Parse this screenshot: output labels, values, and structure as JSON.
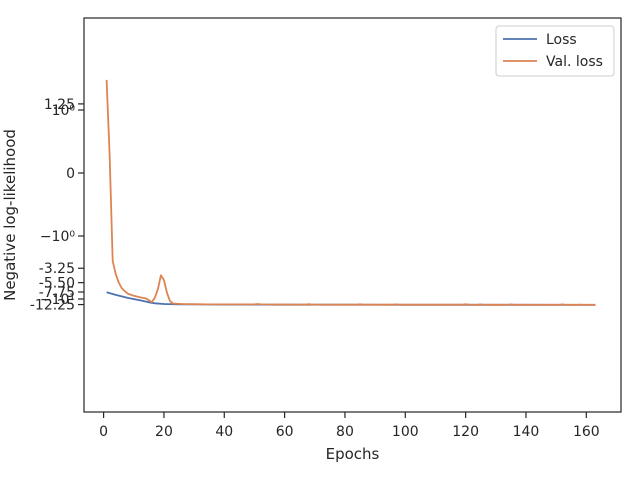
{
  "chart_data": {
    "type": "line",
    "xlabel": "Epochs",
    "ylabel": "Negative log-likelihood",
    "xlim": [
      -6.5,
      171.5
    ],
    "yscale": "symlog",
    "grid": false,
    "legend_placement": "top-right",
    "x_ticks": [
      0,
      20,
      40,
      60,
      80,
      100,
      120,
      140,
      160
    ],
    "x_tick_labels": [
      "0",
      "20",
      "40",
      "60",
      "80",
      "100",
      "120",
      "140",
      "160"
    ],
    "y_ticks": [
      {
        "label": "1.25",
        "value": 1.25
      },
      {
        "label": "10⁰",
        "value": 1
      },
      {
        "label": "0",
        "value": 0
      },
      {
        "label": "−10⁰",
        "value": -1
      },
      {
        "label": "-3.25",
        "value": -3.25
      },
      {
        "label": "-5.50",
        "value": -5.5
      },
      {
        "label": "-7.75",
        "value": -7.75
      },
      {
        "label": "−10¹",
        "value": -10
      },
      {
        "label": "-12.25",
        "value": -12.25
      }
    ],
    "series": [
      {
        "name": "Loss",
        "color": "#4c72b0",
        "points": [
          [
            1,
            -7.8
          ],
          [
            4,
            -8.6
          ],
          [
            8,
            -9.6
          ],
          [
            12,
            -10.5
          ],
          [
            15,
            -11.3
          ],
          [
            17,
            -11.7
          ],
          [
            20,
            -12.0
          ],
          [
            25,
            -12.15
          ],
          [
            30,
            -12.2
          ],
          [
            40,
            -12.25
          ],
          [
            60,
            -12.3
          ],
          [
            80,
            -12.3
          ],
          [
            100,
            -12.35
          ],
          [
            120,
            -12.35
          ],
          [
            140,
            -12.35
          ],
          [
            163,
            -12.4
          ]
        ]
      },
      {
        "name": "Val. loss",
        "color": "#dd8452",
        "points": [
          [
            1,
            3.0
          ],
          [
            2,
            0.3
          ],
          [
            3,
            -2.5
          ],
          [
            4,
            -4.0
          ],
          [
            5,
            -5.5
          ],
          [
            6,
            -6.7
          ],
          [
            7,
            -7.5
          ],
          [
            8,
            -8.2
          ],
          [
            10,
            -8.9
          ],
          [
            12,
            -9.4
          ],
          [
            14,
            -9.8
          ],
          [
            15,
            -10.5
          ],
          [
            16,
            -11.2
          ],
          [
            17,
            -9.5
          ],
          [
            18,
            -7.0
          ],
          [
            19,
            -4.2
          ],
          [
            20,
            -5.0
          ],
          [
            21,
            -8.0
          ],
          [
            22,
            -10.8
          ],
          [
            23,
            -11.8
          ],
          [
            26,
            -12.0
          ],
          [
            30,
            -12.1
          ],
          [
            35,
            -12.2
          ],
          [
            50,
            -12.2
          ],
          [
            51,
            -12.0
          ],
          [
            52,
            -12.2
          ],
          [
            67,
            -12.25
          ],
          [
            68,
            -12.1
          ],
          [
            69,
            -12.25
          ],
          [
            84,
            -12.3
          ],
          [
            85,
            -12.15
          ],
          [
            86,
            -12.3
          ],
          [
            96,
            -12.3
          ],
          [
            97,
            -12.2
          ],
          [
            98,
            -12.3
          ],
          [
            119,
            -12.3
          ],
          [
            120,
            -12.15
          ],
          [
            121,
            -12.3
          ],
          [
            124,
            -12.35
          ],
          [
            125,
            -12.2
          ],
          [
            126,
            -12.35
          ],
          [
            134,
            -12.35
          ],
          [
            135,
            -12.2
          ],
          [
            136,
            -12.35
          ],
          [
            151,
            -12.35
          ],
          [
            152,
            -12.2
          ],
          [
            153,
            -12.35
          ],
          [
            157,
            -12.35
          ],
          [
            158,
            -12.25
          ],
          [
            159,
            -12.35
          ],
          [
            163,
            -12.35
          ]
        ]
      }
    ]
  }
}
